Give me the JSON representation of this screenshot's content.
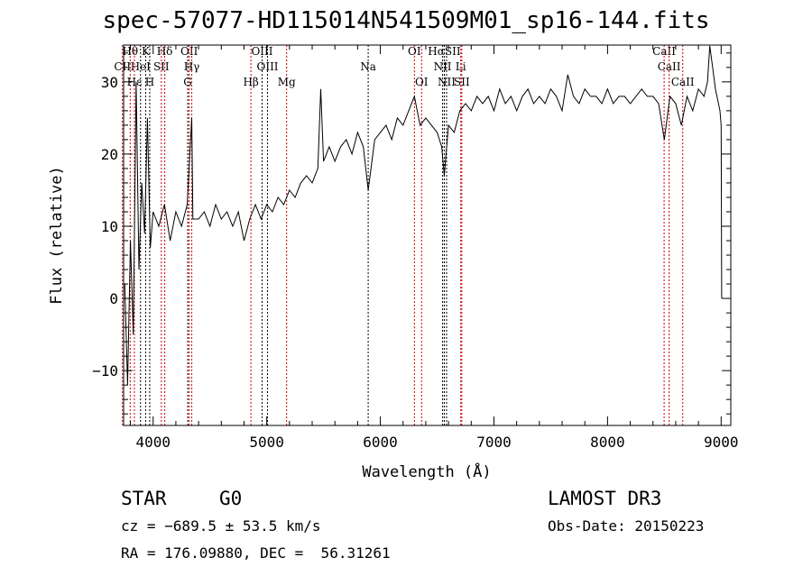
{
  "chart_data": {
    "type": "line",
    "title": "spec-57077-HD115014N541509M01_sp16-144.fits",
    "xlabel": "Wavelength (Å)",
    "ylabel": "Flux (relative)",
    "xlim": [
      3740,
      9085
    ],
    "ylim": [
      -17.6,
      35.1
    ],
    "xticks": [
      4000,
      5000,
      6000,
      7000,
      8000,
      9000
    ],
    "xtick_labels": [
      "4000",
      "5000",
      "6000",
      "7000",
      "8000",
      "9000"
    ],
    "yticks": [
      -10,
      0,
      10,
      20,
      30
    ],
    "ytick_labels": [
      "−10",
      "0",
      "10",
      "20",
      "30"
    ],
    "grid": false,
    "series": [
      {
        "name": "spectrum",
        "x": [
          3750,
          3775,
          3800,
          3825,
          3850,
          3875,
          3900,
          3925,
          3950,
          3975,
          4000,
          4050,
          4100,
          4150,
          4200,
          4250,
          4300,
          4340,
          4350,
          4400,
          4450,
          4500,
          4550,
          4600,
          4650,
          4700,
          4750,
          4800,
          4850,
          4900,
          4950,
          5000,
          5050,
          5100,
          5150,
          5200,
          5250,
          5300,
          5350,
          5400,
          5450,
          5475,
          5500,
          5550,
          5600,
          5650,
          5700,
          5750,
          5800,
          5850,
          5893,
          5950,
          6000,
          6050,
          6100,
          6150,
          6200,
          6250,
          6300,
          6350,
          6400,
          6450,
          6500,
          6540,
          6563,
          6600,
          6650,
          6700,
          6750,
          6800,
          6850,
          6900,
          6950,
          7000,
          7050,
          7100,
          7150,
          7200,
          7250,
          7300,
          7350,
          7400,
          7450,
          7500,
          7550,
          7600,
          7650,
          7700,
          7750,
          7800,
          7850,
          7900,
          7950,
          8000,
          8050,
          8100,
          8150,
          8200,
          8250,
          8300,
          8350,
          8400,
          8450,
          8500,
          8550,
          8600,
          8650,
          8700,
          8750,
          8800,
          8850,
          8880,
          8900,
          8950,
          8990,
          9000,
          9005
        ],
        "y": [
          2,
          -12,
          8,
          -5,
          30,
          4,
          16,
          9,
          25,
          7,
          12,
          10,
          13,
          8,
          12,
          10,
          13,
          25,
          11,
          11,
          12,
          10,
          13,
          11,
          12,
          10,
          12,
          8,
          11,
          13,
          11,
          13,
          12,
          14,
          13,
          15,
          14,
          16,
          17,
          16,
          18,
          29,
          19,
          21,
          19,
          21,
          22,
          20,
          23,
          21,
          15,
          22,
          23,
          24,
          22,
          25,
          24,
          26,
          28,
          24,
          25,
          24,
          23,
          21,
          17,
          24,
          23,
          26,
          27,
          26,
          28,
          27,
          28,
          26,
          29,
          27,
          28,
          26,
          28,
          29,
          27,
          28,
          27,
          29,
          28,
          26,
          31,
          28,
          27,
          29,
          28,
          28,
          27,
          29,
          27,
          28,
          28,
          27,
          28,
          29,
          28,
          28,
          27,
          22,
          28,
          27,
          24,
          28,
          26,
          29,
          28,
          30,
          35,
          29,
          26,
          24,
          0
        ]
      }
    ],
    "lines": [
      {
        "label": "Hθ",
        "wl": 3798,
        "row": 0,
        "color": "#cc0000"
      },
      {
        "label": "K",
        "wl": 3934,
        "row": 0,
        "color": "#000000"
      },
      {
        "label": "Hδ",
        "wl": 4102,
        "row": 0,
        "color": "#cc0000"
      },
      {
        "label": "OII",
        "wl": 4317,
        "row": 0,
        "color": "#cc0000"
      },
      {
        "label": "OIII",
        "wl": 4959,
        "row": 0,
        "color": "#000000"
      },
      {
        "label": "OI",
        "wl": 6300,
        "row": 0,
        "color": "#cc0000"
      },
      {
        "label": "HαSII",
        "wl": 6563,
        "row": 0,
        "color": "#000000"
      },
      {
        "label": "CaII",
        "wl": 8498,
        "row": 0,
        "color": "#cc0000"
      },
      {
        "label": "CII",
        "wl": 3730,
        "row": 1,
        "color": "#cc0000"
      },
      {
        "label": "HeI",
        "wl": 3889,
        "row": 1,
        "color": "#000000"
      },
      {
        "label": "SII",
        "wl": 4072,
        "row": 1,
        "color": "#cc0000"
      },
      {
        "label": "Hγ",
        "wl": 4340,
        "row": 1,
        "color": "#cc0000"
      },
      {
        "label": "OIII",
        "wl": 5007,
        "row": 1,
        "color": "#000000"
      },
      {
        "label": "Na",
        "wl": 5893,
        "row": 1,
        "color": "#000000"
      },
      {
        "label": "NII",
        "wl": 6548,
        "row": 1,
        "color": "#000000"
      },
      {
        "label": "Li",
        "wl": 6708,
        "row": 1,
        "color": "#cc0000"
      },
      {
        "label": "CaII",
        "wl": 8542,
        "row": 1,
        "color": "#cc0000"
      },
      {
        "label": "Hε",
        "wl": 3835,
        "row": 2,
        "color": "#cc0000"
      },
      {
        "label": "H",
        "wl": 3970,
        "row": 2,
        "color": "#000000"
      },
      {
        "label": "G",
        "wl": 4304,
        "row": 2,
        "color": "#000000"
      },
      {
        "label": "Hβ",
        "wl": 4861,
        "row": 2,
        "color": "#cc0000"
      },
      {
        "label": "Mg",
        "wl": 5175,
        "row": 2,
        "color": "#cc0000"
      },
      {
        "label": "OI",
        "wl": 6363,
        "row": 2,
        "color": "#cc0000"
      },
      {
        "label": "NII",
        "wl": 6583,
        "row": 2,
        "color": "#000000"
      },
      {
        "label": "SII",
        "wl": 6717,
        "row": 2,
        "color": "#cc0000"
      },
      {
        "label": "CaII",
        "wl": 8662,
        "row": 2,
        "color": "#cc0000"
      }
    ]
  },
  "info": {
    "object_type": "STAR",
    "subclass": "G0",
    "survey": "LAMOST DR3",
    "cz": "cz = −689.5 ± 53.5 km/s",
    "obs_date": "Obs-Date: 20150223",
    "coords": "RA = 176.09880, DEC =  56.31261"
  }
}
